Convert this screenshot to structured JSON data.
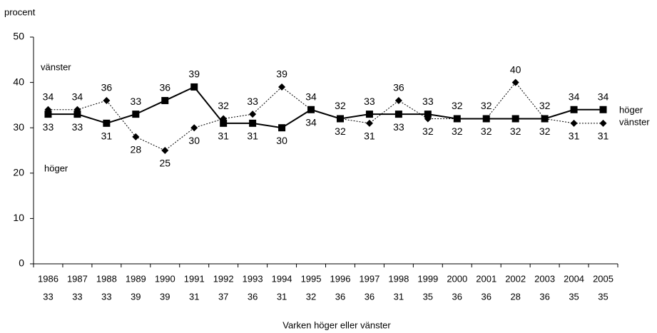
{
  "chart_data": {
    "type": "line",
    "y_label": "procent",
    "x_label": "Varken höger eller vänster",
    "categories": [
      "1986",
      "1987",
      "1988",
      "1989",
      "1990",
      "1991",
      "1992",
      "1993",
      "1994",
      "1995",
      "1996",
      "1997",
      "1998",
      "1999",
      "2000",
      "2001",
      "2002",
      "2003",
      "2004",
      "2005"
    ],
    "series": [
      {
        "name": "höger",
        "color": "#000000",
        "marker": "square",
        "dash": "solid",
        "values": [
          33,
          33,
          31,
          33,
          36,
          39,
          31,
          31,
          30,
          34,
          32,
          33,
          33,
          33,
          32,
          32,
          32,
          32,
          34,
          34
        ]
      },
      {
        "name": "vänster",
        "color": "#000000",
        "marker": "diamond",
        "dash": "dotted",
        "values": [
          34,
          34,
          36,
          28,
          25,
          30,
          32,
          33,
          39,
          34,
          32,
          31,
          36,
          32,
          32,
          32,
          40,
          32,
          31,
          31
        ]
      }
    ],
    "table_row": {
      "name": "Varken höger eller vänster",
      "values": [
        33,
        33,
        33,
        39,
        39,
        31,
        37,
        36,
        31,
        32,
        36,
        36,
        31,
        35,
        36,
        36,
        28,
        36,
        35,
        35
      ]
    },
    "ylim": [
      0,
      50
    ],
    "yticks": [
      0,
      10,
      20,
      30,
      40,
      50
    ],
    "grid": false
  }
}
